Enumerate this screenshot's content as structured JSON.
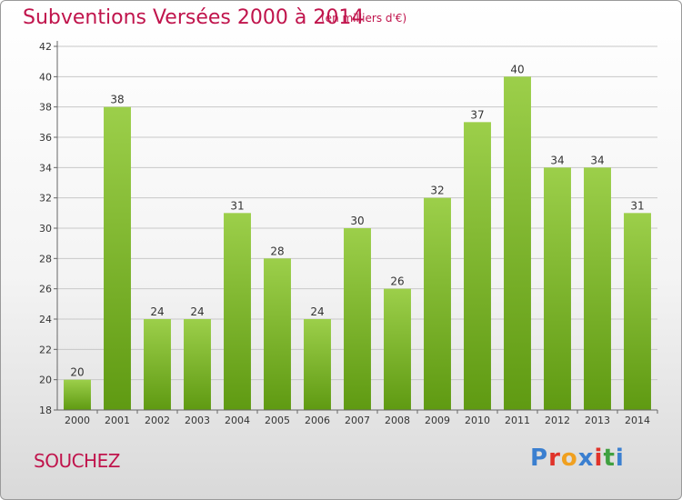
{
  "title": "Subventions Versées 2000 à 2014",
  "unit_label": "(en milliers d'€)",
  "commune": "SOUCHEZ",
  "logo": {
    "text": "Proxiti",
    "letter_colors": [
      "#3a7fd0",
      "#e0332a",
      "#f0a020",
      "#3a7fd0",
      "#e0332a",
      "#40a040",
      "#3a7fd0"
    ]
  },
  "colors": {
    "title": "#c0144c",
    "bar_light": "#9ccf4a",
    "bar_dark": "#5f9a12",
    "grid": "#c8c8c8"
  },
  "chart_data": {
    "type": "bar",
    "categories": [
      "2000",
      "2001",
      "2002",
      "2003",
      "2004",
      "2005",
      "2006",
      "2007",
      "2008",
      "2009",
      "2010",
      "2011",
      "2012",
      "2013",
      "2014"
    ],
    "values": [
      20,
      38,
      24,
      24,
      31,
      28,
      24,
      30,
      26,
      32,
      37,
      40,
      34,
      34,
      31
    ],
    "ylim": [
      18,
      42
    ],
    "yticks": [
      18,
      20,
      22,
      24,
      26,
      28,
      30,
      32,
      34,
      36,
      38,
      40,
      42
    ],
    "grid": true,
    "title": "Subventions Versées 2000 à 2014",
    "xlabel": "",
    "ylabel": ""
  }
}
